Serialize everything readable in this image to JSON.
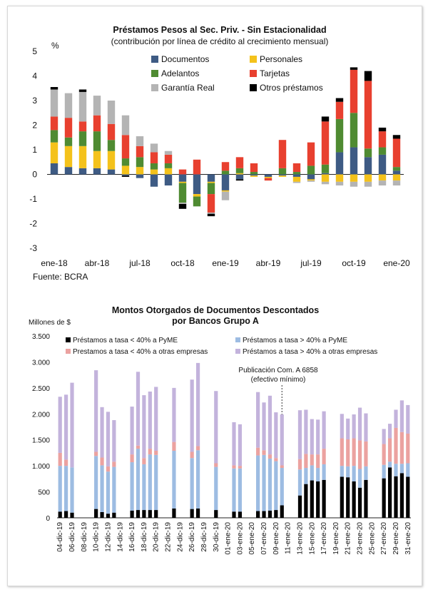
{
  "colors": {
    "documentos": "#3e5b84",
    "personales": "#f4c21b",
    "adelantos": "#4f8b32",
    "tarjetas": "#e8402f",
    "garantia": "#b4b4b4",
    "otros": "#000000",
    "b_black": "#000000",
    "b_blue": "#9dbce2",
    "b_pink": "#eba2a0",
    "b_purple": "#c3b3dc"
  },
  "chart_data": [
    {
      "type": "bar",
      "stacked": true,
      "title": "Préstamos Pesos al Sec. Priv. - Sin Estacionalidad",
      "subtitle": "(contribución por línea de crédito al crecimiento mensual)",
      "ylabel": "%",
      "ylim": [
        -3,
        5
      ],
      "yticks": [
        5,
        4,
        3,
        2,
        1,
        0,
        -1,
        -2,
        -3
      ],
      "categories": [
        "ene-18",
        "feb-18",
        "mar-18",
        "abr-18",
        "may-18",
        "jun-18",
        "jul-18",
        "ago-18",
        "sep-18",
        "oct-18",
        "nov-18",
        "dic-18",
        "ene-19",
        "feb-19",
        "mar-19",
        "abr-19",
        "may-19",
        "jun-19",
        "jul-19",
        "ago-19",
        "sep-19",
        "oct-19",
        "nov-19",
        "dic-19",
        "ene-20"
      ],
      "xtick_labels": [
        "ene-18",
        "abr-18",
        "jul-18",
        "oct-18",
        "ene-19",
        "abr-19",
        "jul-19",
        "oct-19",
        "ene-20"
      ],
      "legend": [
        "Documentos",
        "Personales",
        "Adelantos",
        "Tarjetas",
        "Garantía Real",
        "Otros préstamos"
      ],
      "source": "Fuente: BCRA",
      "series": [
        {
          "name": "Documentos",
          "values": [
            0.45,
            0.3,
            0.25,
            0.25,
            0.2,
            -0.05,
            -0.15,
            -0.5,
            -0.45,
            -0.3,
            -0.8,
            -0.3,
            -0.65,
            -0.2,
            -0.05,
            -0.1,
            -0.05,
            -0.1,
            -0.2,
            0.05,
            0.9,
            1.1,
            0.7,
            0.8,
            0.15
          ]
        },
        {
          "name": "Personales",
          "values": [
            0.85,
            0.85,
            0.9,
            0.7,
            0.75,
            0.35,
            0.3,
            0.2,
            0.25,
            -0.05,
            -0.1,
            -0.05,
            -0.05,
            0.05,
            -0.05,
            -0.05,
            -0.05,
            -0.2,
            -0.05,
            -0.3,
            -0.3,
            -0.3,
            -0.3,
            -0.25,
            -0.25
          ]
        },
        {
          "name": "Adelantos",
          "values": [
            0.5,
            0.35,
            0.6,
            0.8,
            0.45,
            0.3,
            0.4,
            0.25,
            0.2,
            -0.8,
            -0.4,
            -0.45,
            0.15,
            0.2,
            0.1,
            0.0,
            0.25,
            0.1,
            0.35,
            0.35,
            1.35,
            1.4,
            0.35,
            0.3,
            0.15
          ]
        },
        {
          "name": "Tarjetas",
          "values": [
            0.55,
            0.8,
            0.4,
            0.65,
            0.65,
            0.95,
            0.45,
            0.45,
            0.35,
            0.2,
            0.6,
            -0.75,
            0.35,
            0.45,
            0.35,
            -0.1,
            1.15,
            0.35,
            0.95,
            1.75,
            0.7,
            1.75,
            2.75,
            0.65,
            1.15
          ]
        },
        {
          "name": "Garantía Real",
          "values": [
            1.1,
            1.0,
            1.2,
            0.8,
            0.95,
            0.8,
            0.4,
            0.35,
            0.15,
            -0.05,
            0.0,
            -0.05,
            -0.35,
            0.0,
            0.0,
            0.0,
            0.0,
            -0.05,
            -0.05,
            -0.1,
            -0.15,
            -0.2,
            -0.2,
            -0.2,
            -0.2
          ]
        },
        {
          "name": "Otros préstamos",
          "values": [
            0.1,
            0.0,
            0.1,
            0.0,
            0.0,
            -0.05,
            0.0,
            0.0,
            0.0,
            -0.2,
            0.0,
            -0.1,
            0.0,
            -0.05,
            0.0,
            0.0,
            0.0,
            0.0,
            0.0,
            0.2,
            0.15,
            0.1,
            0.4,
            0.15,
            0.15
          ]
        }
      ]
    },
    {
      "type": "bar",
      "stacked": true,
      "title": "Montos Otorgados de Documentos Descontados",
      "subtitle": "por Bancos Grupo A",
      "ylabel": "Millones de $",
      "ylim": [
        0,
        3500
      ],
      "yticks": [
        3500,
        3000,
        2500,
        2000,
        1500,
        1000,
        500,
        0
      ],
      "ytick_labels": [
        "3.500",
        "3.000",
        "2.500",
        "2.000",
        "1.500",
        "1.000",
        "500",
        "0"
      ],
      "categories": [
        "04-dic-19",
        "05-dic-19",
        "06-dic-19",
        "07-dic-19",
        "08-dic-19",
        "09-dic-19",
        "10-dic-19",
        "11-dic-19",
        "12-dic-19",
        "13-dic-19",
        "14-dic-19",
        "15-dic-19",
        "16-dic-19",
        "17-dic-19",
        "18-dic-19",
        "19-dic-19",
        "20-dic-19",
        "21-dic-19",
        "22-dic-19",
        "23-dic-19",
        "24-dic-19",
        "25-dic-19",
        "26-dic-19",
        "27-dic-19",
        "28-dic-19",
        "29-dic-19",
        "30-dic-19",
        "31-dic-19",
        "01-ene-20",
        "02-ene-20",
        "03-ene-20",
        "04-ene-20",
        "05-ene-20",
        "06-ene-20",
        "07-ene-20",
        "08-ene-20",
        "09-ene-20",
        "10-ene-20",
        "11-ene-20",
        "12-ene-20",
        "13-ene-20",
        "14-ene-20",
        "15-ene-20",
        "16-ene-20",
        "17-ene-20",
        "18-ene-20",
        "19-ene-20",
        "20-ene-20",
        "21-ene-20",
        "22-ene-20",
        "23-ene-20",
        "24-ene-20",
        "25-ene-20",
        "26-ene-20",
        "27-ene-20",
        "28-ene-20",
        "29-ene-20",
        "30-ene-20",
        "31-ene-20"
      ],
      "xtick_labels": [
        "04-dic-19",
        "06-dic-19",
        "08-dic-19",
        "10-dic-19",
        "12-dic-19",
        "14-dic-19",
        "16-dic-19",
        "18-dic-19",
        "20-dic-19",
        "22-dic-19",
        "24-dic-19",
        "26-dic-19",
        "28-dic-19",
        "30-dic-19",
        "01-ene-20",
        "03-ene-20",
        "05-ene-20",
        "07-ene-20",
        "09-ene-20",
        "11-ene-20",
        "13-ene-20",
        "15-ene-20",
        "17-ene-20",
        "19-ene-20",
        "21-ene-20",
        "23-ene-20",
        "25-ene-20",
        "27-ene-20",
        "29-ene-20",
        "31-ene-20"
      ],
      "annotation": [
        "Publicación Com. A 6858",
        "(efectivo mínimo)"
      ],
      "annotation_category": "10-ene-20",
      "legend": [
        "Préstamos a tasa < 40% a PyME",
        "Préstamos a tasa > 40% a PyME",
        "Prestamos a tasa < 40% a otras empresas",
        "Préstamos a tasa > 40% a otras empresas"
      ],
      "series": [
        {
          "name": "Préstamos a tasa < 40% a PyME",
          "values": [
            120,
            130,
            100,
            null,
            null,
            null,
            170,
            110,
            80,
            100,
            null,
            null,
            140,
            150,
            150,
            150,
            150,
            null,
            null,
            180,
            null,
            null,
            170,
            180,
            null,
            null,
            150,
            null,
            null,
            120,
            120,
            null,
            null,
            130,
            130,
            140,
            150,
            240,
            null,
            null,
            430,
            650,
            720,
            700,
            730,
            null,
            null,
            790,
            780,
            700,
            580,
            730,
            null,
            null,
            760,
            970,
            800,
            860,
            790
          ]
        },
        {
          "name": "Préstamos a tasa > 40% a PyME",
          "values": [
            880,
            870,
            870,
            null,
            null,
            null,
            1020,
            900,
            810,
            880,
            null,
            null,
            930,
            1180,
            880,
            1070,
            1060,
            null,
            null,
            1110,
            null,
            null,
            980,
            1120,
            null,
            null,
            830,
            null,
            null,
            830,
            830,
            null,
            null,
            1070,
            1080,
            1000,
            940,
            720,
            null,
            null,
            500,
            310,
            290,
            260,
            300,
            null,
            null,
            210,
            210,
            300,
            360,
            260,
            null,
            null,
            260,
            110,
            240,
            180,
            260
          ]
        },
        {
          "name": "Prestamos a tasa < 40% a otras empresas",
          "values": [
            250,
            120,
            0,
            null,
            null,
            null,
            80,
            150,
            100,
            100,
            null,
            null,
            150,
            60,
            120,
            110,
            80,
            null,
            null,
            170,
            null,
            null,
            120,
            80,
            null,
            null,
            70,
            null,
            null,
            60,
            50,
            null,
            null,
            150,
            90,
            80,
            60,
            50,
            null,
            null,
            200,
            270,
            210,
            260,
            300,
            null,
            null,
            530,
            520,
            530,
            550,
            480,
            null,
            null,
            400,
            450,
            690,
            610,
            570
          ]
        },
        {
          "name": "Préstamos a tasa > 40% a otras empresas",
          "values": [
            1080,
            1250,
            1630,
            null,
            null,
            null,
            1570,
            970,
            1050,
            800,
            null,
            null,
            920,
            1420,
            1210,
            1100,
            1230,
            null,
            null,
            1040,
            null,
            null,
            1390,
            1600,
            null,
            null,
            1390,
            null,
            null,
            830,
            800,
            null,
            null,
            1070,
            920,
            1130,
            880,
            980,
            null,
            null,
            940,
            850,
            680,
            670,
            720,
            null,
            null,
            470,
            400,
            460,
            630,
            540,
            null,
            null,
            290,
            280,
            350,
            610,
            550
          ]
        }
      ]
    }
  ]
}
